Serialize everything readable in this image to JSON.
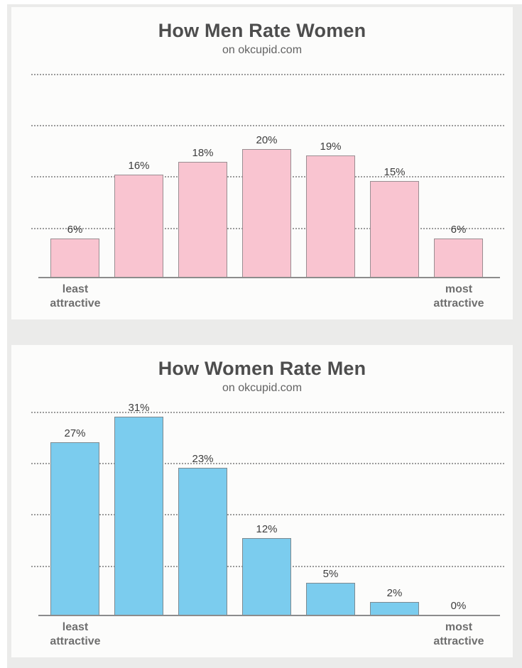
{
  "page": {
    "background_color": "#ebebea",
    "panel_color": "#fcfcfb"
  },
  "chart_data": [
    {
      "type": "bar",
      "title": "How Men Rate Women",
      "subtitle": "on okcupid.com",
      "values": [
        6,
        16,
        18,
        20,
        19,
        15,
        6
      ],
      "value_labels": [
        "6%",
        "16%",
        "18%",
        "20%",
        "19%",
        "15%",
        "6%"
      ],
      "x_axis": {
        "left_label": "least attractive",
        "right_label": "most attractive"
      },
      "ylim": [
        0,
        33
      ],
      "grid": "dotted-horizontal",
      "gridline_values": [
        8,
        16,
        24,
        32
      ],
      "legend": "none",
      "bar_color": "#f9c4d0",
      "bar_border_color": "#9a8e92"
    },
    {
      "type": "bar",
      "title": "How Women Rate Men",
      "subtitle": "on okcupid.com",
      "values": [
        27,
        31,
        23,
        12,
        5,
        2,
        0
      ],
      "value_labels": [
        "27%",
        "31%",
        "23%",
        "12%",
        "5%",
        "2%",
        "0%"
      ],
      "x_axis": {
        "left_label": "least attractive",
        "right_label": "most attractive"
      },
      "ylim": [
        0,
        33
      ],
      "grid": "dotted-horizontal",
      "gridline_values": [
        8,
        16,
        24,
        32
      ],
      "legend": "none",
      "bar_color": "#7bccee",
      "bar_border_color": "#7e8a90"
    }
  ]
}
